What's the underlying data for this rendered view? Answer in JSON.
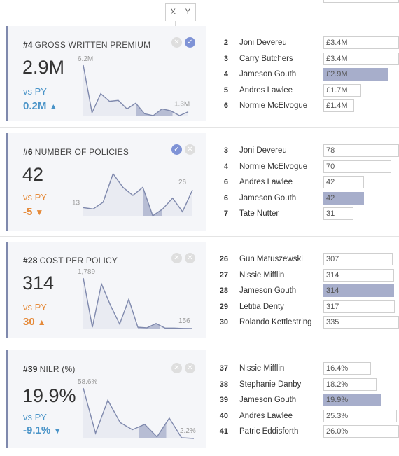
{
  "header": {
    "x_label": "X",
    "y_label": "Y"
  },
  "cards": [
    {
      "rank": "#4",
      "title": "GROSS WRITTEN PREMIUM",
      "value": "2.9M",
      "vs_label": "vs PY",
      "delta": "0.2M",
      "delta_dir": "up",
      "delta_color": "#4a94c8",
      "x_selected": false,
      "y_selected": true,
      "spark_max_label": "6.2M",
      "spark_end_label": "1.3M",
      "spark_values": [
        6.2,
        1.2,
        3.2,
        2.4,
        2.5,
        1.6,
        2.2,
        1.1,
        0.9,
        1.6,
        1.4,
        0.9,
        1.3
      ],
      "rows": [
        {
          "rank": "2",
          "name": "Joni Devereu",
          "value": "£3.4M",
          "amount": 3.4,
          "highlight": false
        },
        {
          "rank": "3",
          "name": "Carry Butchers",
          "value": "£3.4M",
          "amount": 3.4,
          "highlight": false
        },
        {
          "rank": "4",
          "name": "Jameson Gouth",
          "value": "£2.9M",
          "amount": 2.9,
          "highlight": true
        },
        {
          "rank": "5",
          "name": "Andres Lawlee",
          "value": "£1.7M",
          "amount": 1.7,
          "highlight": false
        },
        {
          "rank": "6",
          "name": "Normie McElvogue",
          "value": "£1.4M",
          "amount": 1.4,
          "highlight": false
        }
      ]
    },
    {
      "rank": "#6",
      "title": "NUMBER OF POLICIES",
      "value": "42",
      "vs_label": "vs PY",
      "delta": "-5",
      "delta_dir": "down",
      "delta_color": "#e58a3a",
      "x_selected": true,
      "y_selected": false,
      "spark_max_label": "",
      "spark_start_label": "13",
      "spark_end_label": "26",
      "spark_values": [
        13,
        12,
        17,
        38,
        28,
        22,
        28,
        7,
        12,
        20,
        10,
        26
      ],
      "rows": [
        {
          "rank": "3",
          "name": "Joni Devereu",
          "value": "78",
          "amount": 78,
          "highlight": false
        },
        {
          "rank": "4",
          "name": "Normie McElvogue",
          "value": "70",
          "amount": 70,
          "highlight": false
        },
        {
          "rank": "6",
          "name": "Andres Lawlee",
          "value": "42",
          "amount": 42,
          "highlight": false
        },
        {
          "rank": "6",
          "name": "Jameson Gouth",
          "value": "42",
          "amount": 42,
          "highlight": true
        },
        {
          "rank": "7",
          "name": "Tate Nutter",
          "value": "31",
          "amount": 31,
          "highlight": false
        }
      ]
    },
    {
      "rank": "#28",
      "title": "COST PER POLICY",
      "value": "314",
      "vs_label": "vs PY",
      "delta": "30",
      "delta_dir": "up",
      "delta_color": "#e58a3a",
      "x_selected": false,
      "y_selected": false,
      "spark_max_label": "1,789",
      "spark_end_label": "156",
      "spark_values": [
        1789,
        200,
        1600,
        900,
        300,
        1100,
        200,
        180,
        320,
        170,
        170,
        160,
        156
      ],
      "rows": [
        {
          "rank": "26",
          "name": "Gun Matuszewski",
          "value": "307",
          "amount": 307,
          "highlight": false
        },
        {
          "rank": "27",
          "name": "Nissie Mifflin",
          "value": "314",
          "amount": 314,
          "highlight": false
        },
        {
          "rank": "28",
          "name": "Jameson Gouth",
          "value": "314",
          "amount": 314,
          "highlight": true
        },
        {
          "rank": "29",
          "name": "Letitia Denty",
          "value": "317",
          "amount": 317,
          "highlight": false
        },
        {
          "rank": "30",
          "name": "Rolando Kettlestring",
          "value": "335",
          "amount": 335,
          "highlight": false
        }
      ]
    },
    {
      "rank": "#39",
      "title": "NILR (%)",
      "value": "19.9%",
      "vs_label": "vs PY",
      "delta": "-9.1%",
      "delta_dir": "down",
      "delta_color": "#4a94c8",
      "x_selected": false,
      "y_selected": false,
      "spark_max_label": "58.6%",
      "spark_end_label": "2.2%",
      "spark_values": [
        58.6,
        8,
        45,
        20,
        12,
        18,
        4,
        25,
        3,
        2.2
      ],
      "rows": [
        {
          "rank": "37",
          "name": "Nissie Mifflin",
          "value": "16.4%",
          "amount": 16.4,
          "highlight": false
        },
        {
          "rank": "38",
          "name": "Stephanie Danby",
          "value": "18.2%",
          "amount": 18.2,
          "highlight": false
        },
        {
          "rank": "39",
          "name": "Jameson Gouth",
          "value": "19.9%",
          "amount": 19.9,
          "highlight": true
        },
        {
          "rank": "40",
          "name": "Andres Lawlee",
          "value": "25.3%",
          "amount": 25.3,
          "highlight": false
        },
        {
          "rank": "41",
          "name": "Patric Eddisforth",
          "value": "26.0%",
          "amount": 26.0,
          "highlight": false
        }
      ]
    }
  ]
}
